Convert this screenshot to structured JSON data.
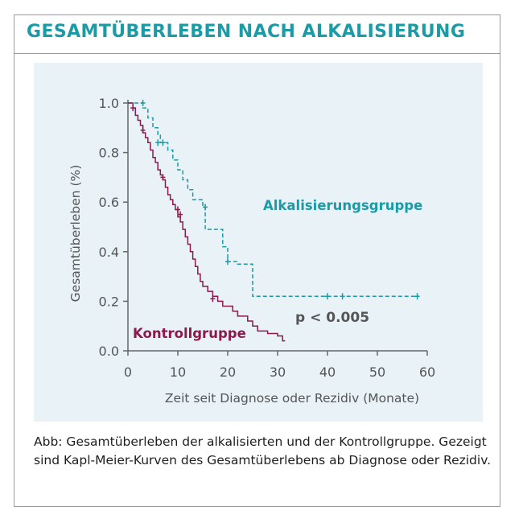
{
  "title": "GESAMTÜBERLEBEN NACH ALKALISIERUNG",
  "caption": "Abb:  Gesamtüberleben der alkalisierten und der Kontrollgruppe. Gezeigt sind Kapl-Meier-Kurven des Gesamtüberlebens ab Diagnose oder Rezidiv.",
  "colors": {
    "title": "#1a9ba6",
    "treated": "#1a9ba6",
    "control": "#8c1a4e",
    "axis": "#666666",
    "panel": "#e8f2f7"
  },
  "chart_data": {
    "type": "line",
    "subtype": "kaplan-meier",
    "xlabel": "Zeit seit Diagnose oder Rezidiv (Monate)",
    "ylabel": "Gesamtüberleben (%)",
    "xlim": [
      0,
      60
    ],
    "ylim": [
      0,
      1
    ],
    "xticks": [
      0,
      10,
      20,
      30,
      40,
      50,
      60
    ],
    "yticks": [
      0,
      0.2,
      0.4,
      0.6,
      0.8,
      1.0
    ],
    "xtick_labels": [
      "0",
      "10",
      "20",
      "30",
      "40",
      "50",
      "60"
    ],
    "ytick_labels": [
      "0.0",
      "0.2",
      "0.4",
      "0.6",
      "0.8",
      "1.0"
    ],
    "grid": false,
    "annotation": "p < 0.005",
    "series": [
      {
        "name": "Alkalisierungsgruppe",
        "style": "dashed",
        "color": "#1a9ba6",
        "steps": [
          [
            0,
            1.0
          ],
          [
            3,
            0.98
          ],
          [
            4,
            0.94
          ],
          [
            5,
            0.9
          ],
          [
            6,
            0.87
          ],
          [
            6.5,
            0.84
          ],
          [
            8,
            0.81
          ],
          [
            9,
            0.77
          ],
          [
            10,
            0.73
          ],
          [
            11,
            0.69
          ],
          [
            12,
            0.65
          ],
          [
            13,
            0.61
          ],
          [
            15,
            0.58
          ],
          [
            15.5,
            0.49
          ],
          [
            19,
            0.42
          ],
          [
            20,
            0.36
          ],
          [
            22,
            0.35
          ],
          [
            25,
            0.22
          ],
          [
            58,
            0.22
          ]
        ],
        "censored": [
          [
            3,
            1.0
          ],
          [
            6,
            0.84
          ],
          [
            7,
            0.84
          ],
          [
            15.5,
            0.58
          ],
          [
            20,
            0.36
          ],
          [
            40,
            0.22
          ],
          [
            43,
            0.22
          ],
          [
            58,
            0.22
          ]
        ]
      },
      {
        "name": "Kontrollgruppe",
        "style": "solid",
        "color": "#8c1a4e",
        "steps": [
          [
            0,
            1.0
          ],
          [
            1,
            0.98
          ],
          [
            1.5,
            0.95
          ],
          [
            2,
            0.93
          ],
          [
            2.5,
            0.91
          ],
          [
            3,
            0.88
          ],
          [
            3.5,
            0.86
          ],
          [
            4,
            0.84
          ],
          [
            4.5,
            0.81
          ],
          [
            5,
            0.78
          ],
          [
            5.5,
            0.76
          ],
          [
            6,
            0.73
          ],
          [
            6.5,
            0.71
          ],
          [
            7,
            0.69
          ],
          [
            7.5,
            0.66
          ],
          [
            8,
            0.63
          ],
          [
            8.5,
            0.61
          ],
          [
            9,
            0.59
          ],
          [
            9.5,
            0.57
          ],
          [
            10,
            0.54
          ],
          [
            10.5,
            0.52
          ],
          [
            11,
            0.49
          ],
          [
            11.5,
            0.46
          ],
          [
            12,
            0.43
          ],
          [
            12.5,
            0.4
          ],
          [
            13,
            0.37
          ],
          [
            13.5,
            0.34
          ],
          [
            14,
            0.31
          ],
          [
            14.5,
            0.28
          ],
          [
            15,
            0.26
          ],
          [
            16,
            0.24
          ],
          [
            17,
            0.22
          ],
          [
            18,
            0.2
          ],
          [
            19,
            0.18
          ],
          [
            21,
            0.16
          ],
          [
            22,
            0.14
          ],
          [
            24,
            0.12
          ],
          [
            25,
            0.1
          ],
          [
            26,
            0.08
          ],
          [
            28,
            0.07
          ],
          [
            30,
            0.06
          ],
          [
            31,
            0.04
          ],
          [
            31.5,
            0.04
          ]
        ],
        "censored": [
          [
            1,
            0.98
          ],
          [
            3,
            0.89
          ],
          [
            7,
            0.7
          ],
          [
            10,
            0.57
          ],
          [
            10.5,
            0.55
          ],
          [
            17,
            0.21
          ]
        ]
      }
    ],
    "series_labels": [
      "Alkalisierungsgruppe",
      "Kontrollgruppe"
    ]
  }
}
